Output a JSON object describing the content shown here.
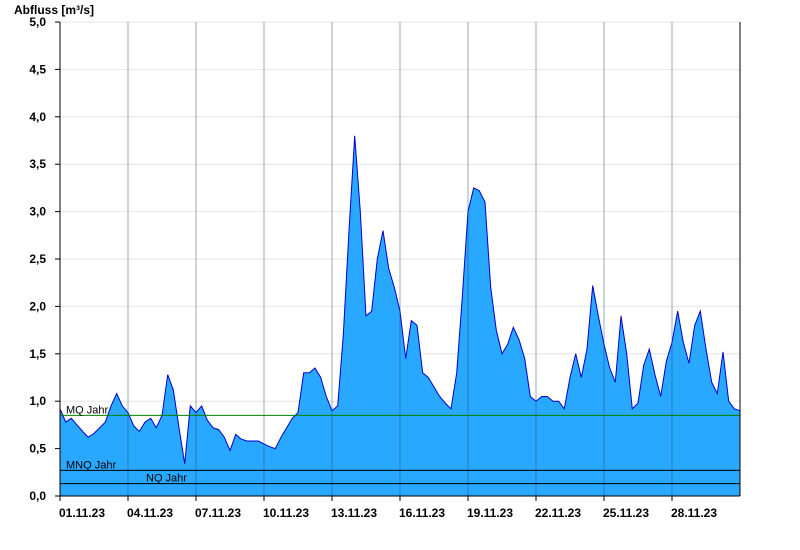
{
  "chart_data": {
    "type": "area",
    "title": "",
    "ylabel": "Abfluss [m³/s]",
    "xlabel": "",
    "ylim": [
      0,
      5.0
    ],
    "yticks": [
      {
        "value": 0.0,
        "label": "0,0"
      },
      {
        "value": 0.5,
        "label": "0,5"
      },
      {
        "value": 1.0,
        "label": "1,0"
      },
      {
        "value": 1.5,
        "label": "1,5"
      },
      {
        "value": 2.0,
        "label": "2,0"
      },
      {
        "value": 2.5,
        "label": "2,5"
      },
      {
        "value": 3.0,
        "label": "3,0"
      },
      {
        "value": 3.5,
        "label": "3,5"
      },
      {
        "value": 4.0,
        "label": "4,0"
      },
      {
        "value": 4.5,
        "label": "4,5"
      },
      {
        "value": 5.0,
        "label": "5,0"
      }
    ],
    "xlim": [
      "2023-11-01",
      "2023-12-01"
    ],
    "xticks": [
      {
        "value": "2023-11-01",
        "label": "01.11.23"
      },
      {
        "value": "2023-11-04",
        "label": "04.11.23"
      },
      {
        "value": "2023-11-07",
        "label": "07.11.23"
      },
      {
        "value": "2023-11-10",
        "label": "10.11.23"
      },
      {
        "value": "2023-11-13",
        "label": "13.11.23"
      },
      {
        "value": "2023-11-16",
        "label": "16.11.23"
      },
      {
        "value": "2023-11-19",
        "label": "19.11.23"
      },
      {
        "value": "2023-11-22",
        "label": "22.11.23"
      },
      {
        "value": "2023-11-25",
        "label": "25.11.23"
      },
      {
        "value": "2023-11-28",
        "label": "28.11.23"
      }
    ],
    "grid": true,
    "series": [
      {
        "color": "#29a8ff",
        "line_color": "#0000cc",
        "x": [
          "2023-11-01 00:00",
          "2023-11-01 06:00",
          "2023-11-01 12:00",
          "2023-11-01 18:00",
          "2023-11-02 00:00",
          "2023-11-02 06:00",
          "2023-11-02 12:00",
          "2023-11-02 18:00",
          "2023-11-03 00:00",
          "2023-11-03 06:00",
          "2023-11-03 12:00",
          "2023-11-03 18:00",
          "2023-11-04 00:00",
          "2023-11-04 06:00",
          "2023-11-04 12:00",
          "2023-11-04 18:00",
          "2023-11-05 00:00",
          "2023-11-05 06:00",
          "2023-11-05 12:00",
          "2023-11-05 18:00",
          "2023-11-06 00:00",
          "2023-11-06 06:00",
          "2023-11-06 12:00",
          "2023-11-06 18:00",
          "2023-11-07 00:00",
          "2023-11-07 06:00",
          "2023-11-07 12:00",
          "2023-11-07 18:00",
          "2023-11-08 00:00",
          "2023-11-08 06:00",
          "2023-11-08 12:00",
          "2023-11-08 18:00",
          "2023-11-09 00:00",
          "2023-11-09 06:00",
          "2023-11-09 12:00",
          "2023-11-09 18:00",
          "2023-11-10 00:00",
          "2023-11-10 06:00",
          "2023-11-10 12:00",
          "2023-11-10 18:00",
          "2023-11-11 00:00",
          "2023-11-11 06:00",
          "2023-11-11 12:00",
          "2023-11-11 18:00",
          "2023-11-12 00:00",
          "2023-11-12 06:00",
          "2023-11-12 12:00",
          "2023-11-12 18:00",
          "2023-11-13 00:00",
          "2023-11-13 06:00",
          "2023-11-13 12:00",
          "2023-11-13 18:00",
          "2023-11-14 00:00",
          "2023-11-14 06:00",
          "2023-11-14 12:00",
          "2023-11-14 18:00",
          "2023-11-15 00:00",
          "2023-11-15 06:00",
          "2023-11-15 12:00",
          "2023-11-15 18:00",
          "2023-11-16 00:00",
          "2023-11-16 06:00",
          "2023-11-16 12:00",
          "2023-11-16 18:00",
          "2023-11-17 00:00",
          "2023-11-17 06:00",
          "2023-11-17 12:00",
          "2023-11-17 18:00",
          "2023-11-18 00:00",
          "2023-11-18 06:00",
          "2023-11-18 12:00",
          "2023-11-18 18:00",
          "2023-11-19 00:00",
          "2023-11-19 06:00",
          "2023-11-19 12:00",
          "2023-11-19 18:00",
          "2023-11-20 00:00",
          "2023-11-20 06:00",
          "2023-11-20 12:00",
          "2023-11-20 18:00",
          "2023-11-21 00:00",
          "2023-11-21 06:00",
          "2023-11-21 12:00",
          "2023-11-21 18:00",
          "2023-11-22 00:00",
          "2023-11-22 06:00",
          "2023-11-22 12:00",
          "2023-11-22 18:00",
          "2023-11-23 00:00",
          "2023-11-23 06:00",
          "2023-11-23 12:00",
          "2023-11-23 18:00",
          "2023-11-24 00:00",
          "2023-11-24 06:00",
          "2023-11-24 12:00",
          "2023-11-24 18:00",
          "2023-11-25 00:00",
          "2023-11-25 06:00",
          "2023-11-25 12:00",
          "2023-11-25 18:00",
          "2023-11-26 00:00",
          "2023-11-26 06:00",
          "2023-11-26 12:00",
          "2023-11-26 18:00",
          "2023-11-27 00:00",
          "2023-11-27 06:00",
          "2023-11-27 12:00",
          "2023-11-27 18:00",
          "2023-11-28 00:00",
          "2023-11-28 06:00",
          "2023-11-28 12:00",
          "2023-11-28 18:00",
          "2023-11-29 00:00",
          "2023-11-29 06:00",
          "2023-11-29 12:00",
          "2023-11-29 18:00",
          "2023-11-30 00:00",
          "2023-11-30 06:00",
          "2023-11-30 12:00",
          "2023-11-30 18:00",
          "2023-12-01 00:00"
        ],
        "values": [
          0.92,
          0.78,
          0.82,
          0.75,
          0.68,
          0.62,
          0.66,
          0.72,
          0.78,
          0.95,
          1.08,
          0.95,
          0.88,
          0.74,
          0.68,
          0.78,
          0.82,
          0.72,
          0.85,
          1.28,
          1.12,
          0.72,
          0.34,
          0.95,
          0.88,
          0.95,
          0.8,
          0.72,
          0.7,
          0.62,
          0.48,
          0.65,
          0.6,
          0.58,
          0.58,
          0.58,
          0.55,
          0.52,
          0.5,
          0.62,
          0.72,
          0.82,
          0.88,
          1.3,
          1.3,
          1.35,
          1.25,
          1.05,
          0.9,
          0.95,
          1.7,
          2.8,
          3.8,
          3.0,
          1.9,
          1.95,
          2.5,
          2.8,
          2.4,
          2.2,
          1.95,
          1.45,
          1.85,
          1.8,
          1.3,
          1.25,
          1.15,
          1.05,
          0.98,
          0.92,
          1.3,
          2.1,
          3.0,
          3.25,
          3.22,
          3.1,
          2.2,
          1.75,
          1.5,
          1.6,
          1.78,
          1.65,
          1.45,
          1.05,
          1.0,
          1.05,
          1.05,
          1.0,
          1.0,
          0.92,
          1.25,
          1.5,
          1.25,
          1.55,
          2.22,
          1.9,
          1.6,
          1.35,
          1.2,
          1.9,
          1.5,
          0.92,
          0.98,
          1.38,
          1.55,
          1.28,
          1.05,
          1.42,
          1.62,
          1.95,
          1.62,
          1.4,
          1.8,
          1.95,
          1.55,
          1.2,
          1.08,
          1.52,
          1.0,
          0.92,
          0.9
        ]
      }
    ],
    "reference_lines": [
      {
        "label": "MQ Jahr",
        "value": 0.85,
        "color": "#008000"
      },
      {
        "label": "MNQ Jahr",
        "value": 0.27,
        "color": "#000000"
      },
      {
        "label": "NQ Jahr",
        "value": 0.13,
        "color": "#000000"
      }
    ],
    "legend": "none"
  }
}
